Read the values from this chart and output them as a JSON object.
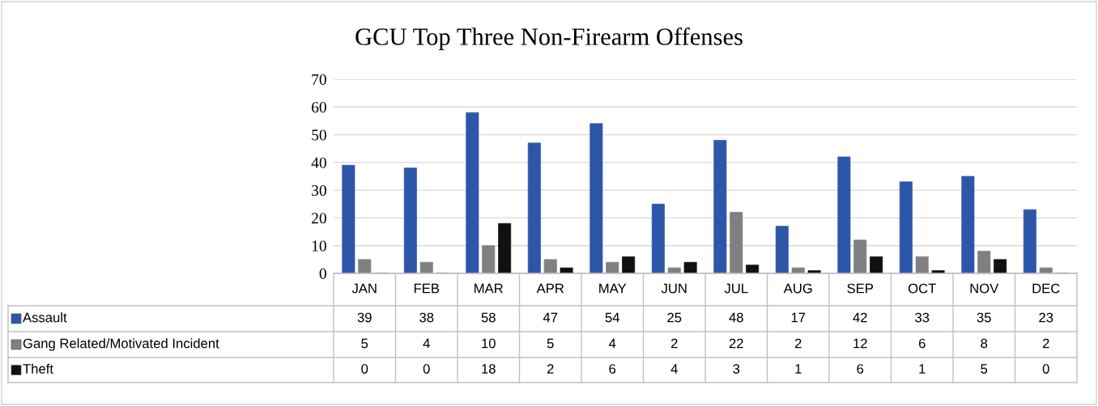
{
  "chart_data": {
    "type": "bar",
    "title": "GCU Top Three Non-Firearm Offenses",
    "categories": [
      "JAN",
      "FEB",
      "MAR",
      "APR",
      "MAY",
      "JUN",
      "JUL",
      "AUG",
      "SEP",
      "OCT",
      "NOV",
      "DEC"
    ],
    "series": [
      {
        "name": "Assault",
        "color": "#2e56a8",
        "values": [
          39,
          38,
          58,
          47,
          54,
          25,
          48,
          17,
          42,
          33,
          35,
          23
        ]
      },
      {
        "name": "Gang Related/Motivated Incident",
        "color": "#808080",
        "values": [
          5,
          4,
          10,
          5,
          4,
          2,
          22,
          2,
          12,
          6,
          8,
          2
        ]
      },
      {
        "name": "Theft",
        "color": "#111111",
        "values": [
          0,
          0,
          18,
          2,
          6,
          4,
          3,
          1,
          6,
          1,
          5,
          0
        ]
      }
    ],
    "ylim": [
      0,
      70
    ],
    "yticks": [
      0,
      10,
      20,
      30,
      40,
      50,
      60,
      70
    ],
    "grid": "y",
    "legend": "bottom",
    "data_labels": true
  }
}
